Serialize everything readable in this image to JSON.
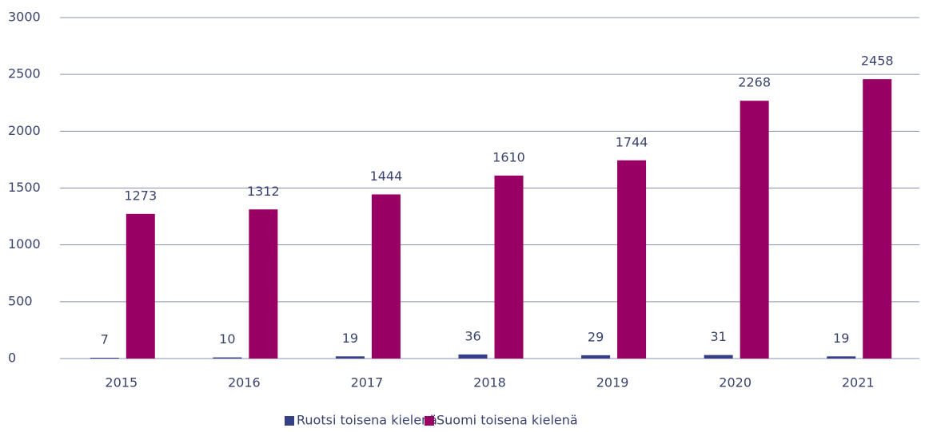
{
  "chart_data": {
    "type": "bar",
    "categories": [
      "2015",
      "2016",
      "2017",
      "2018",
      "2019",
      "2020",
      "2021"
    ],
    "series": [
      {
        "name": "Ruotsi toisena kielenä",
        "color": "#353f86",
        "values": [
          7,
          10,
          19,
          36,
          29,
          31,
          19
        ]
      },
      {
        "name": "Suomi toisena kielenä",
        "color": "#990063",
        "values": [
          1273,
          1312,
          1444,
          1610,
          1744,
          2268,
          2458
        ]
      }
    ],
    "ylim": [
      0,
      3000
    ],
    "yticks": [
      0,
      500,
      1000,
      1500,
      2000,
      2500,
      3000
    ],
    "grid": true,
    "legend": "bottom"
  }
}
